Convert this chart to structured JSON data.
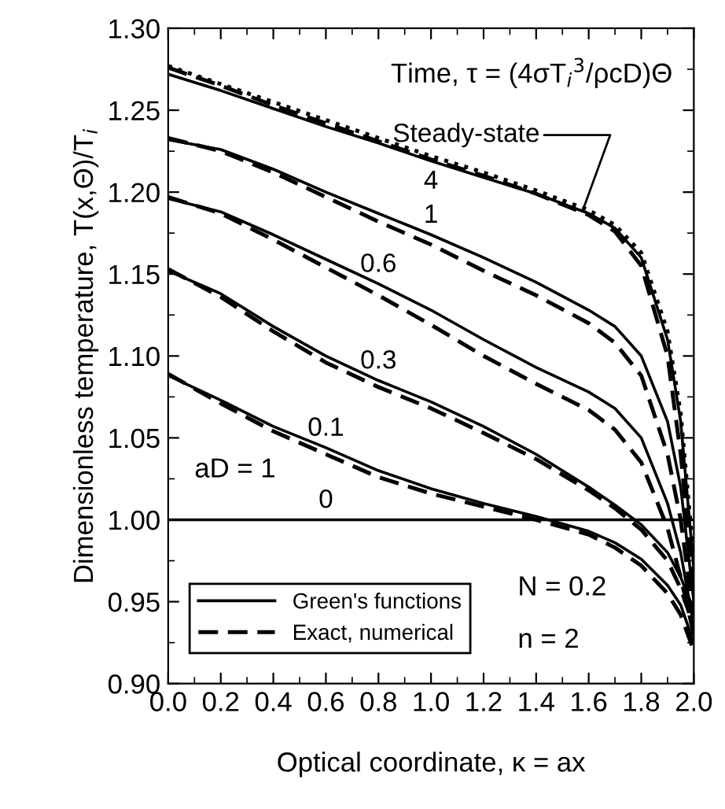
{
  "chart_data": {
    "type": "line",
    "xlabel": "Optical coordinate, κ = ax",
    "ylabel": "Dimensionless temperature, T(x,Θ)/T$_{i}$",
    "x": [
      0,
      0.2,
      0.4,
      0.6,
      0.8,
      1.0,
      1.2,
      1.4,
      1.6,
      1.7,
      1.8,
      1.9,
      1.95,
      2.0
    ],
    "series": [
      {
        "name": "Green's functions",
        "color": "#000000",
        "line_style": "solid",
        "values": [
          1.0,
          1.0,
          1.0,
          1.0,
          1.0,
          1.0,
          1.0,
          1.0,
          1.0,
          1.0,
          1.0,
          1.0,
          1.0,
          1.0
        ]
      },
      {
        "color": "#000000",
        "line_style": "solid",
        "values": [
          1.088,
          1.073,
          1.057,
          1.044,
          1.03,
          1.019,
          1.01,
          1.002,
          0.993,
          0.986,
          0.976,
          0.96,
          0.948,
          0.925
        ]
      },
      {
        "color": "#000000",
        "line_style": "solid",
        "values": [
          1.152,
          1.138,
          1.118,
          1.1,
          1.085,
          1.072,
          1.057,
          1.04,
          1.02,
          1.009,
          0.997,
          0.98,
          0.965,
          0.945
        ]
      },
      {
        "color": "#000000",
        "line_style": "solid",
        "values": [
          1.196,
          1.188,
          1.174,
          1.159,
          1.144,
          1.128,
          1.11,
          1.093,
          1.078,
          1.068,
          1.05,
          1.01,
          0.98,
          0.935
        ]
      },
      {
        "color": "#000000",
        "line_style": "solid",
        "values": [
          1.232,
          1.226,
          1.214,
          1.2,
          1.187,
          1.174,
          1.16,
          1.145,
          1.128,
          1.118,
          1.1,
          1.06,
          1.02,
          0.95
        ]
      },
      {
        "color": "#000000",
        "line_style": "solid",
        "values": [
          1.272,
          1.262,
          1.251,
          1.24,
          1.23,
          1.219,
          1.209,
          1.199,
          1.187,
          1.178,
          1.16,
          1.11,
          1.06,
          0.97
        ]
      },
      {
        "name": "Exact, numerical",
        "color": "#000000",
        "line_style": "dashed",
        "values": [
          1.089,
          1.071,
          1.054,
          1.04,
          1.026,
          1.016,
          1.008,
          1.0,
          0.991,
          0.983,
          0.972,
          0.955,
          0.942,
          0.92
        ]
      },
      {
        "color": "#000000",
        "line_style": "dashed",
        "values": [
          1.153,
          1.136,
          1.115,
          1.096,
          1.081,
          1.068,
          1.053,
          1.037,
          1.018,
          1.007,
          0.994,
          0.975,
          0.958,
          0.935
        ]
      },
      {
        "color": "#000000",
        "line_style": "dashed",
        "values": [
          1.197,
          1.187,
          1.171,
          1.154,
          1.137,
          1.119,
          1.1,
          1.083,
          1.067,
          1.055,
          1.035,
          0.995,
          0.965,
          0.93
        ]
      },
      {
        "color": "#000000",
        "line_style": "dashed",
        "values": [
          1.233,
          1.225,
          1.212,
          1.197,
          1.182,
          1.168,
          1.152,
          1.137,
          1.12,
          1.108,
          1.088,
          1.04,
          1.0,
          0.94
        ]
      },
      {
        "color": "#000000",
        "line_style": "dashed",
        "values": [
          1.276,
          1.265,
          1.253,
          1.242,
          1.231,
          1.22,
          1.21,
          1.199,
          1.186,
          1.176,
          1.155,
          1.1,
          1.04,
          0.96
        ]
      },
      {
        "color": "#000000",
        "line_style": "dotted",
        "values": [
          1.277,
          1.266,
          1.255,
          1.244,
          1.233,
          1.222,
          1.212,
          1.201,
          1.189,
          1.18,
          1.163,
          1.115,
          1.065,
          0.975
        ]
      }
    ],
    "xlim": [
      0,
      2.0
    ],
    "ylim": [
      0.9,
      1.3
    ],
    "xticks": [
      {
        "value": 0,
        "label": "0.0"
      },
      0.2,
      0.4,
      0.6,
      0.8,
      {
        "value": 1.0,
        "label": "1.0"
      },
      1.2,
      1.4,
      1.6,
      1.8,
      {
        "value": 2.0,
        "label": "2.0"
      }
    ],
    "yticks": [
      {
        "value": 0.9,
        "label": "0.90"
      },
      0.95,
      {
        "value": 1.0,
        "label": "1.00"
      },
      1.05,
      {
        "value": 1.1,
        "label": "1.10"
      },
      1.15,
      {
        "value": 1.2,
        "label": "1.20"
      },
      1.25,
      {
        "value": 1.3,
        "label": "1.30"
      }
    ],
    "grid": false,
    "legend": "bottom left",
    "marker": "none",
    "annotations": [
      "Time, τ = (4σT$_{i}$$^{3}$/ρcD)Θ",
      "aD = 1",
      "N = 0.2",
      "n = 2",
      {
        "text": "Steady-state",
        "x": 1.58,
        "y": 1.19
      },
      {
        "text": "4",
        "x": 1.0,
        "y": 1.219
      },
      {
        "text": "1",
        "x": 1.0,
        "y": 1.174
      },
      {
        "text": "0.6",
        "x": 0.8,
        "y": 1.144
      },
      {
        "text": "0.3",
        "x": 0.8,
        "y": 1.085
      },
      {
        "text": "0.1",
        "x": 0.6,
        "y": 1.044
      },
      {
        "text": "0",
        "x": 0.6,
        "y": 1.0
      }
    ]
  }
}
